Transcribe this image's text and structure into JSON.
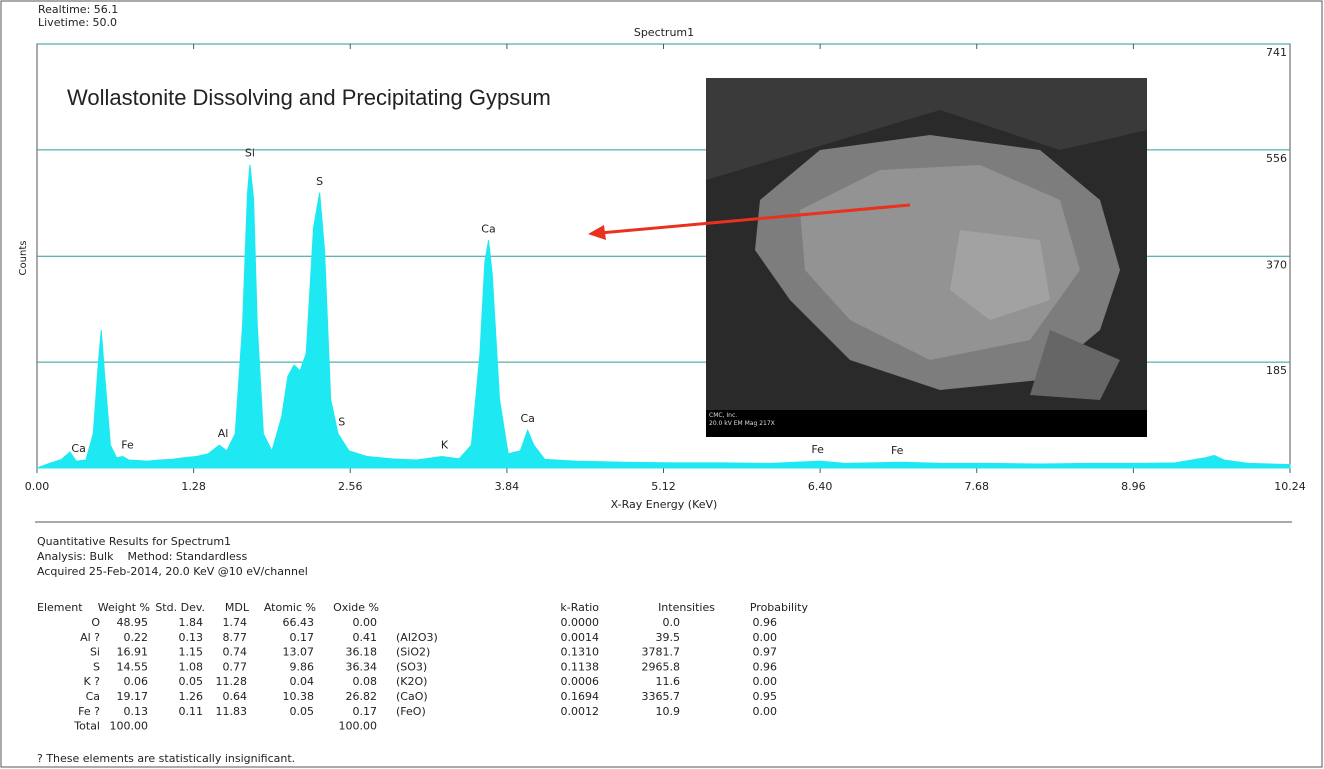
{
  "header": {
    "realtime": "Realtime: 56.1",
    "livetime": "Livetime: 50.0"
  },
  "chart_data": {
    "type": "area",
    "title": "Spectrum1",
    "ylabel": "Counts",
    "xlabel": "X-Ray Energy (KeV)",
    "annotation": "Wollastonite Dissolving and Precipitating Gypsum",
    "color": "#1ee8f2",
    "grid": true,
    "xlim": [
      0,
      10.24
    ],
    "xticks": [
      {
        "value": 0,
        "label": "0.00"
      },
      1.28,
      2.56,
      3.84,
      5.12,
      {
        "value": 6.4,
        "label": "6.40"
      },
      7.68,
      8.96,
      10.24
    ],
    "ylim": [
      0,
      741
    ],
    "yticks": [
      185,
      370,
      556,
      741
    ],
    "x": [
      0,
      0.1,
      0.2,
      0.27,
      0.32,
      0.4,
      0.46,
      0.5,
      0.525,
      0.55,
      0.6,
      0.65,
      0.7,
      0.75,
      0.9,
      1.0,
      1.1,
      1.2,
      1.3,
      1.4,
      1.49,
      1.55,
      1.62,
      1.68,
      1.72,
      1.74,
      1.77,
      1.8,
      1.85,
      1.92,
      2.0,
      2.05,
      2.1,
      2.15,
      2.2,
      2.26,
      2.31,
      2.35,
      2.4,
      2.46,
      2.55,
      2.7,
      2.9,
      3.1,
      3.31,
      3.45,
      3.55,
      3.62,
      3.66,
      3.69,
      3.72,
      3.78,
      3.85,
      3.95,
      4.01,
      4.06,
      4.15,
      4.4,
      4.8,
      5.2,
      5.6,
      6.0,
      6.4,
      6.6,
      7.06,
      7.4,
      7.8,
      8.2,
      8.6,
      9.0,
      9.3,
      9.55,
      9.62,
      9.7,
      9.9,
      10.24
    ],
    "values": [
      0,
      8,
      15,
      28,
      12,
      14,
      60,
      180,
      241,
      170,
      40,
      18,
      20,
      14,
      12,
      14,
      15,
      18,
      20,
      25,
      40,
      30,
      60,
      250,
      480,
      530,
      470,
      250,
      60,
      30,
      90,
      160,
      180,
      170,
      200,
      420,
      481,
      380,
      120,
      60,
      30,
      20,
      16,
      14,
      20,
      16,
      40,
      200,
      360,
      398,
      340,
      120,
      25,
      30,
      66,
      40,
      15,
      12,
      10,
      9,
      9,
      8,
      12,
      8,
      10,
      8,
      8,
      7,
      8,
      8,
      9,
      18,
      22,
      14,
      8,
      6
    ],
    "peaks": [
      {
        "label": "Ca",
        "x": 0.34
      },
      {
        "label": "Fe",
        "x": 0.74
      },
      {
        "label": "Al",
        "x": 1.52
      },
      {
        "label": "Si",
        "x": 1.74
      },
      {
        "label": "S",
        "x": 2.31
      },
      {
        "label": "S",
        "x": 2.49
      },
      {
        "label": "K",
        "x": 3.33
      },
      {
        "label": "Ca",
        "x": 3.69
      },
      {
        "label": "Ca",
        "x": 4.01
      },
      {
        "label": "Fe",
        "x": 6.38
      },
      {
        "label": "Fe",
        "x": 7.03
      }
    ]
  },
  "image": {
    "caption_1": "CMC, Inc.",
    "caption_2": "20.0 kV EM Mag 217X"
  },
  "results": {
    "title": "Quantitative Results for Spectrum1",
    "analysis": "Analysis: Bulk    Method: Standardless",
    "acquired": "Acquired 25-Feb-2014, 20.0 KeV @10 eV/channel",
    "columns": {
      "element": "Element",
      "weight": "Weight %",
      "stddev": "Std. Dev.",
      "mdl": "MDL",
      "atomic": "Atomic %",
      "oxide": "Oxide %",
      "kratio": "k-Ratio",
      "intensities": "Intensities",
      "probability": "Probability"
    },
    "rows": [
      {
        "element": "O",
        "weight": "48.95",
        "stddev": "1.84",
        "mdl": "1.74",
        "atomic": "66.43",
        "oxide": "0.00",
        "kratio": "0.0000",
        "intensities": "0.0",
        "probability": "0.96"
      },
      {
        "element": "Al ?",
        "weight": "0.22",
        "stddev": "0.13",
        "mdl": "8.77",
        "atomic": "0.17",
        "oxide": "0.41",
        "formula": "(Al2O3)",
        "kratio": "0.0014",
        "intensities": "39.5",
        "probability": "0.00"
      },
      {
        "element": "Si",
        "weight": "16.91",
        "stddev": "1.15",
        "mdl": "0.74",
        "atomic": "13.07",
        "oxide": "36.18",
        "formula": "(SiO2)",
        "kratio": "0.1310",
        "intensities": "3781.7",
        "probability": "0.97"
      },
      {
        "element": "S",
        "weight": "14.55",
        "stddev": "1.08",
        "mdl": "0.77",
        "atomic": "9.86",
        "oxide": "36.34",
        "formula": "(SO3)",
        "kratio": "0.1138",
        "intensities": "2965.8",
        "probability": "0.96"
      },
      {
        "element": "K ?",
        "weight": "0.06",
        "stddev": "0.05",
        "mdl": "11.28",
        "atomic": "0.04",
        "oxide": "0.08",
        "formula": "(K2O)",
        "kratio": "0.0006",
        "intensities": "11.6",
        "probability": "0.00"
      },
      {
        "element": "Ca",
        "weight": "19.17",
        "stddev": "1.26",
        "mdl": "0.64",
        "atomic": "10.38",
        "oxide": "26.82",
        "formula": "(CaO)",
        "kratio": "0.1694",
        "intensities": "3365.7",
        "probability": "0.95"
      },
      {
        "element": "Fe ?",
        "weight": "0.13",
        "stddev": "0.11",
        "mdl": "11.83",
        "atomic": "0.05",
        "oxide": "0.17",
        "formula": "(FeO)",
        "kratio": "0.0012",
        "intensities": "10.9",
        "probability": "0.00"
      },
      {
        "element": "Total",
        "weight": "100.00",
        "oxide": "100.00"
      }
    ],
    "footnote": "? These elements are statistically insignificant."
  }
}
